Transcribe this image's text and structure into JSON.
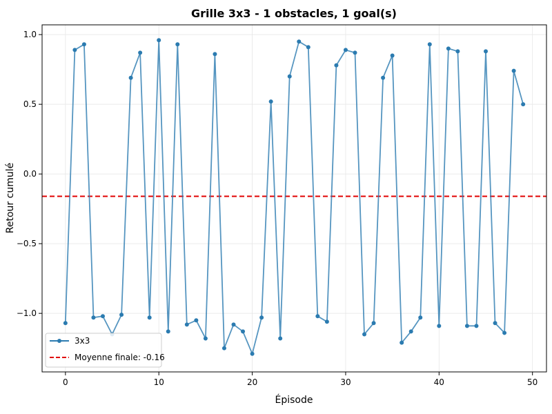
{
  "chart_data": {
    "type": "line",
    "title": "Grille 3x3 - 1 obstacles, 1 goal(s)",
    "xlabel": "Épisode",
    "ylabel": "Retour cumulé",
    "xlim": [
      -2.5,
      51.5
    ],
    "ylim": [
      -1.42,
      1.07
    ],
    "xticks": [
      0,
      10,
      20,
      30,
      40,
      50
    ],
    "xtick_labels": [
      "0",
      "10",
      "20",
      "30",
      "40",
      "50"
    ],
    "yticks": [
      -1.0,
      -0.5,
      0.0,
      0.5,
      1.0
    ],
    "ytick_labels": [
      "−1.0",
      "−0.5",
      "0.0",
      "0.5",
      "1.0"
    ],
    "grid": true,
    "legend_position": "lower-left",
    "series": [
      {
        "name": "3x3",
        "color": "#2b7bb0",
        "x": [
          0,
          1,
          2,
          3,
          4,
          5,
          6,
          7,
          8,
          9,
          10,
          11,
          12,
          13,
          14,
          15,
          16,
          17,
          18,
          19,
          20,
          21,
          22,
          23,
          24,
          25,
          26,
          27,
          28,
          29,
          30,
          31,
          32,
          33,
          34,
          35,
          36,
          37,
          38,
          39,
          40,
          41,
          42,
          43,
          44,
          45,
          46,
          47,
          48,
          49
        ],
        "values": [
          -1.07,
          0.89,
          0.93,
          -1.03,
          -1.02,
          -1.15,
          -1.01,
          0.69,
          0.87,
          -1.03,
          0.96,
          -1.13,
          0.93,
          -1.08,
          -1.05,
          -1.18,
          0.86,
          -1.25,
          -1.08,
          -1.13,
          -1.29,
          -1.03,
          0.52,
          -1.18,
          0.7,
          0.95,
          0.91,
          -1.02,
          -1.06,
          0.78,
          0.89,
          0.87,
          -1.15,
          -1.07,
          0.69,
          0.85,
          -1.21,
          -1.13,
          -1.03,
          0.93,
          -1.09,
          0.9,
          0.88,
          -1.09,
          -1.09,
          0.88,
          -1.07,
          -1.14,
          0.74,
          0.5
        ]
      }
    ],
    "reference_line": {
      "name": "Moyenne finale: -0.16",
      "value": -0.16,
      "color": "#e00000",
      "style": "dashed"
    }
  }
}
